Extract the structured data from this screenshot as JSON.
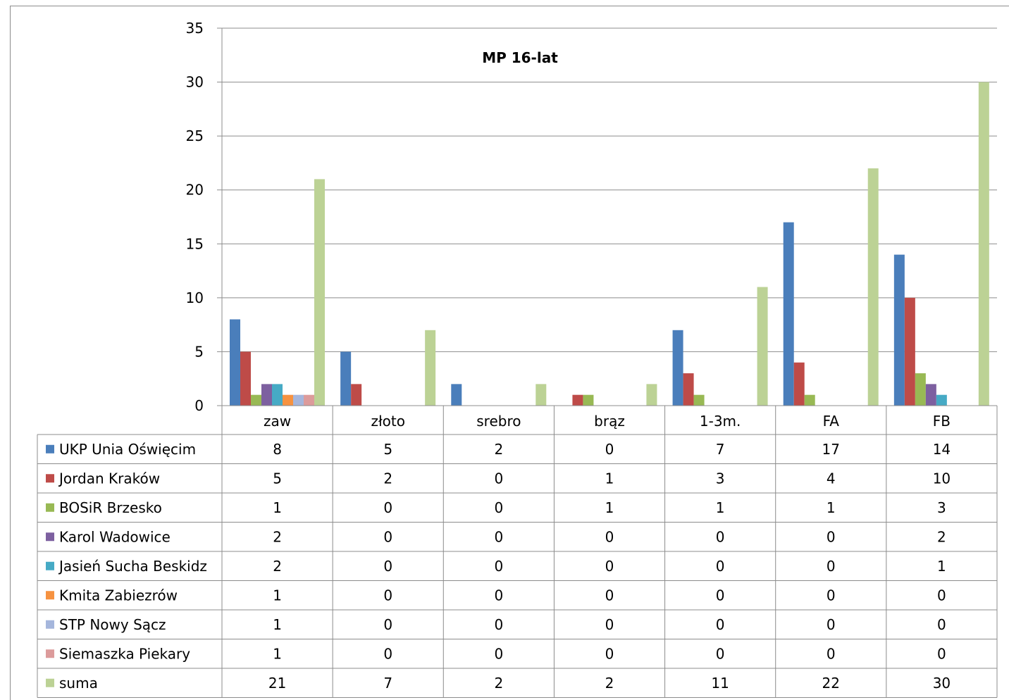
{
  "chart_data": {
    "type": "bar",
    "title": "MP 16-lat",
    "categories": [
      "zaw",
      "złoto",
      "srebro",
      "brąz",
      "1-3m.",
      "FA",
      "FB"
    ],
    "ylim": [
      0,
      35
    ],
    "yticks": [
      0,
      5,
      10,
      15,
      20,
      25,
      30,
      35
    ],
    "grid": true,
    "legend": "data-table",
    "series": [
      {
        "name": "UKP Unia Oświęcim",
        "color": "#4a7ebb",
        "values": [
          8,
          5,
          2,
          0,
          7,
          17,
          14
        ]
      },
      {
        "name": "Jordan Kraków",
        "color": "#be4b48",
        "values": [
          5,
          2,
          0,
          1,
          3,
          4,
          10
        ]
      },
      {
        "name": "BOSiR Brzesko",
        "color": "#98b954",
        "values": [
          1,
          0,
          0,
          1,
          1,
          1,
          3
        ]
      },
      {
        "name": "Karol Wadowice",
        "color": "#7d60a0",
        "values": [
          2,
          0,
          0,
          0,
          0,
          0,
          2
        ]
      },
      {
        "name": "Jasień Sucha Beskidz",
        "color": "#46aac5",
        "values": [
          2,
          0,
          0,
          0,
          0,
          0,
          1
        ]
      },
      {
        "name": "Kmita Zabiezrów",
        "color": "#f69240",
        "values": [
          1,
          0,
          0,
          0,
          0,
          0,
          0
        ]
      },
      {
        "name": "STP Nowy Sącz",
        "color": "#a5b6dc",
        "values": [
          1,
          0,
          0,
          0,
          0,
          0,
          0
        ]
      },
      {
        "name": "Siemaszka Piekary",
        "color": "#dc9b9b",
        "values": [
          1,
          0,
          0,
          0,
          0,
          0,
          0
        ]
      },
      {
        "name": "suma",
        "color": "#bcd295",
        "values": [
          21,
          7,
          2,
          2,
          11,
          22,
          30
        ]
      }
    ]
  }
}
